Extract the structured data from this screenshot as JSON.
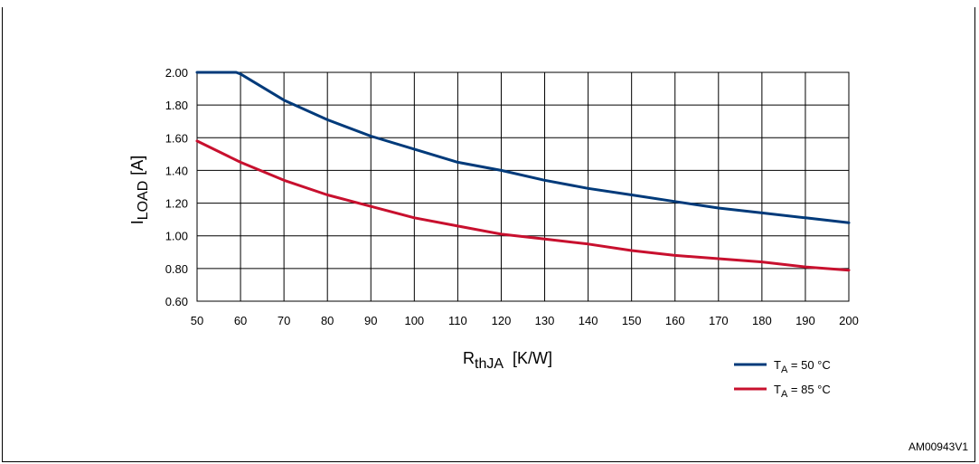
{
  "chart_data": {
    "type": "line",
    "xlabel": {
      "main": "R",
      "sub": "thJA",
      "unit": "[K/W]"
    },
    "ylabel": {
      "main": "I",
      "sub": "LOAD",
      "unit": "[A]"
    },
    "xlim": [
      50,
      200
    ],
    "ylim": [
      0.6,
      2.0
    ],
    "x_ticks": [
      "50",
      "60",
      "70",
      "80",
      "90",
      "100",
      "110",
      "120",
      "130",
      "140",
      "150",
      "160",
      "170",
      "180",
      "190",
      "200"
    ],
    "y_ticks": [
      "0.60",
      "0.80",
      "1.00",
      "1.20",
      "1.40",
      "1.60",
      "1.80",
      "2.00"
    ],
    "grid": true,
    "legend_position": "bottom-right",
    "series": [
      {
        "name": {
          "main": "T",
          "sub": "A",
          "rest": " = 50 °C"
        },
        "color": "#003a7a",
        "x": [
          50,
          59,
          60,
          70,
          80,
          90,
          100,
          110,
          120,
          130,
          140,
          150,
          160,
          170,
          180,
          190,
          200
        ],
        "y": [
          2.0,
          2.0,
          1.99,
          1.83,
          1.71,
          1.61,
          1.53,
          1.45,
          1.4,
          1.34,
          1.29,
          1.25,
          1.21,
          1.17,
          1.14,
          1.11,
          1.08
        ]
      },
      {
        "name": {
          "main": "T",
          "sub": "A",
          "rest": " = 85 °C"
        },
        "color": "#c8102e",
        "x": [
          50,
          60,
          70,
          80,
          90,
          100,
          110,
          120,
          130,
          140,
          150,
          160,
          170,
          180,
          190,
          200
        ],
        "y": [
          1.58,
          1.45,
          1.34,
          1.25,
          1.18,
          1.11,
          1.06,
          1.01,
          0.98,
          0.95,
          0.91,
          0.88,
          0.86,
          0.84,
          0.81,
          0.79
        ]
      }
    ]
  },
  "figure_code": "AM00943V1"
}
